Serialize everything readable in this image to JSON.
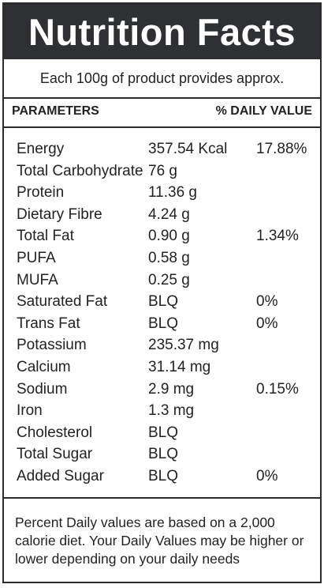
{
  "title": "Nutrition Facts",
  "serving_text": "Each 100g of product provides approx.",
  "header": {
    "parameters_label": "PARAMETERS",
    "daily_value_label": "% DAILY VALUE"
  },
  "nutrients": [
    {
      "name": "Energy",
      "amount": "357.54 Kcal",
      "daily_value": "17.88%"
    },
    {
      "name": "Total Carbohydrate",
      "amount": "76 g",
      "daily_value": ""
    },
    {
      "name": "Protein",
      "amount": "11.36 g",
      "daily_value": ""
    },
    {
      "name": "Dietary Fibre",
      "amount": "4.24 g",
      "daily_value": ""
    },
    {
      "name": "Total Fat",
      "amount": "0.90 g",
      "daily_value": "1.34%"
    },
    {
      "name": "PUFA",
      "amount": "0.58 g",
      "daily_value": ""
    },
    {
      "name": "MUFA",
      "amount": "0.25 g",
      "daily_value": ""
    },
    {
      "name": "Saturated Fat",
      "amount": "BLQ",
      "daily_value": "0%"
    },
    {
      "name": "Trans Fat",
      "amount": "BLQ",
      "daily_value": "0%"
    },
    {
      "name": "Potassium",
      "amount": "235.37 mg",
      "daily_value": ""
    },
    {
      "name": "Calcium",
      "amount": "31.14 mg",
      "daily_value": ""
    },
    {
      "name": "Sodium",
      "amount": "2.9 mg",
      "daily_value": "0.15%"
    },
    {
      "name": "Iron",
      "amount": "1.3 mg",
      "daily_value": ""
    },
    {
      "name": "Cholesterol",
      "amount": "BLQ",
      "daily_value": ""
    },
    {
      "name": "Total Sugar",
      "amount": "BLQ",
      "daily_value": ""
    },
    {
      "name": "Added Sugar",
      "amount": "BLQ",
      "daily_value": "0%"
    }
  ],
  "footnote": "Percent Daily values are based on a 2,000 calorie diet. Your Daily Values may be higher or lower depending on your daily needs",
  "colors": {
    "title_background": "#2f3033",
    "title_text": "#ffffff",
    "body_text": "#222222",
    "border": "#2b2b2b"
  }
}
